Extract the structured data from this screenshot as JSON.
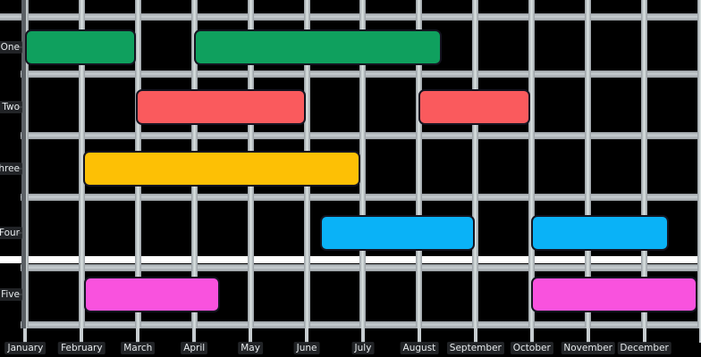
{
  "app": {
    "background_color": "#000000",
    "gridline_color": "#A9AEB3",
    "axis_spine_color": "#5B6065",
    "label_text_color": "#E6EAEC"
  },
  "chart_data": {
    "type": "bar",
    "subtype": "gantt-timeline",
    "orientation": "horizontal",
    "title": "",
    "xlabel": "",
    "ylabel": "",
    "grid": true,
    "legend": false,
    "categories": [
      "One",
      "Two",
      "Three",
      "Four",
      "Five"
    ],
    "x_tick_labels": [
      "January",
      "February",
      "March",
      "April",
      "May",
      "June",
      "July",
      "August",
      "September",
      "October",
      "November",
      "December"
    ],
    "x_axis_unit": "month-of-year",
    "x_range_months": [
      0,
      12.02
    ],
    "series": [
      {
        "row": "One",
        "color": "#0FA05E",
        "segments": [
          {
            "start": 0.0,
            "end": 1.97,
            "approx": "January to March"
          },
          {
            "start": 3.0,
            "end": 7.4,
            "approx": "April to mid-August"
          }
        ]
      },
      {
        "row": "Two",
        "color": "#FA5A5D",
        "segments": [
          {
            "start": 1.97,
            "end": 4.98,
            "approx": "March to June"
          },
          {
            "start": 6.98,
            "end": 8.97,
            "approx": "August to October"
          }
        ]
      },
      {
        "row": "Three",
        "color": "#FDC005",
        "segments": [
          {
            "start": 1.02,
            "end": 5.96,
            "approx": "February to July"
          }
        ]
      },
      {
        "row": "Four",
        "color": "#0AB2F7",
        "segments": [
          {
            "start": 5.23,
            "end": 7.98,
            "approx": "early June to September"
          },
          {
            "start": 8.99,
            "end": 11.43,
            "approx": "October to mid-December"
          }
        ]
      },
      {
        "row": "Five",
        "color": "#F952DE",
        "segments": [
          {
            "start": 1.05,
            "end": 3.45,
            "approx": "February to mid-April"
          },
          {
            "start": 8.98,
            "end": 11.95,
            "approx": "October to late December"
          }
        ]
      }
    ],
    "highlight_band": {
      "between_rows": [
        "Four",
        "Five"
      ],
      "color": "#FFFFFF"
    }
  }
}
